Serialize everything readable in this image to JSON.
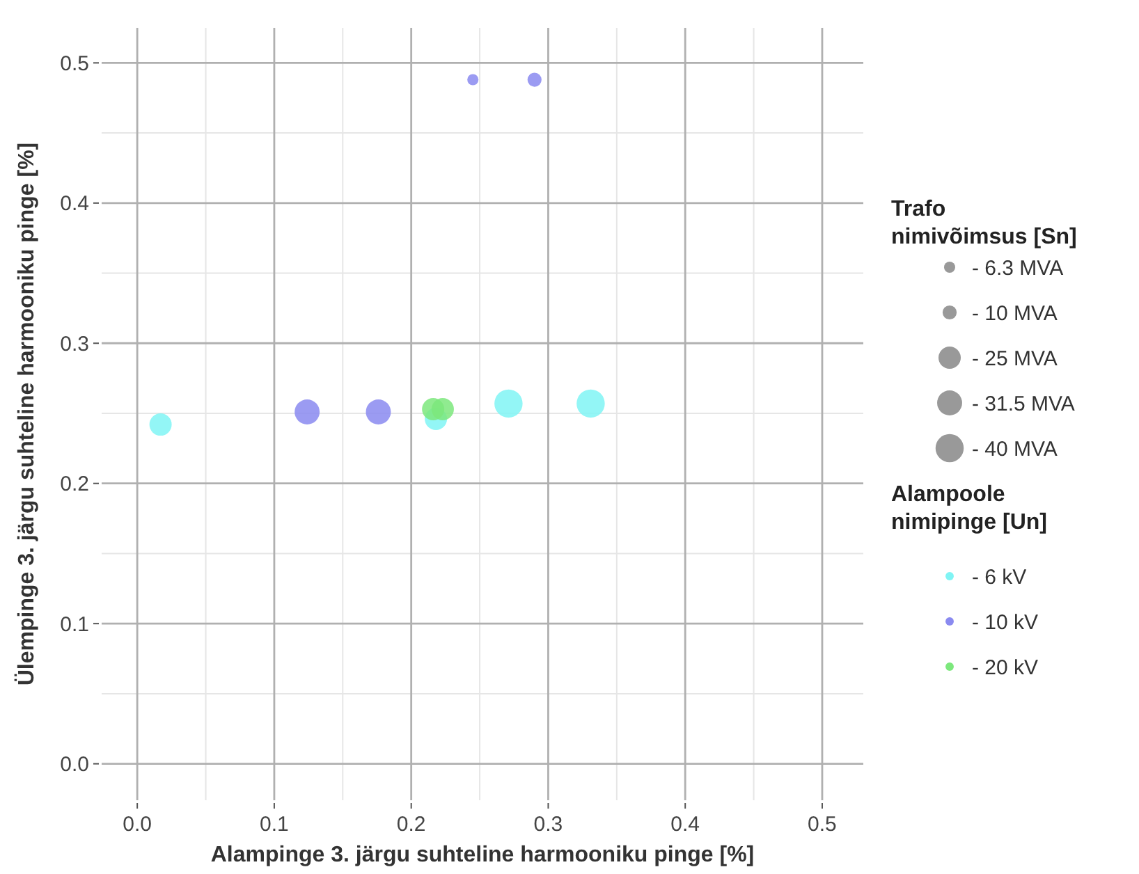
{
  "chart_data": {
    "type": "bubble",
    "xlabel": "Alampinge 3. järgu suhteline harmooniku pinge [%]",
    "ylabel": "Ülempinge 3. järgu suhteline harmooniku pinge [%]",
    "legend_title": "Alampoole\nnimipinge [Un]",
    "annotations": [
      "Trafo\nnimivõimsus [Sn]"
    ],
    "xlim": [
      -0.026,
      0.53
    ],
    "ylim": [
      -0.026,
      0.525
    ],
    "xticks": [
      {
        "value": 0,
        "label": "0.0"
      },
      0.1,
      0.2,
      0.3,
      0.4,
      0.5
    ],
    "yticks": [
      {
        "value": 0,
        "label": "0.0"
      },
      0.1,
      0.2,
      0.3,
      0.4,
      0.5
    ],
    "grid": true,
    "legend": "right",
    "marker": "circle",
    "size_legend": [
      {
        "value": 6.3,
        "label": "-  6.3 MVA"
      },
      {
        "value": 10,
        "label": "- 10 MVA"
      },
      {
        "value": 25,
        "label": "- 25 MVA"
      },
      {
        "value": 31.5,
        "label": "- 31.5 MVA"
      },
      {
        "value": 40,
        "label": "- 40 MVA"
      }
    ],
    "series": [
      {
        "name": "-  6 kV",
        "color": "#80f4f4",
        "x": [
          0.017,
          0.218,
          0.271,
          0.331
        ],
        "values": [
          0.242,
          0.246,
          0.257,
          0.257
        ],
        "sizes": [
          25,
          25,
          40,
          40
        ]
      },
      {
        "name": "- 10 kV",
        "color": "#8a8af0",
        "x": [
          0.124,
          0.176,
          0.245,
          0.29
        ],
        "values": [
          0.251,
          0.251,
          0.488,
          0.488
        ],
        "sizes": [
          31.5,
          31.5,
          6.3,
          10
        ]
      },
      {
        "name": "- 20 kV",
        "color": "#7de87d",
        "x": [
          0.216,
          0.223
        ],
        "values": [
          0.253,
          0.253
        ],
        "sizes": [
          25,
          25
        ]
      }
    ]
  }
}
